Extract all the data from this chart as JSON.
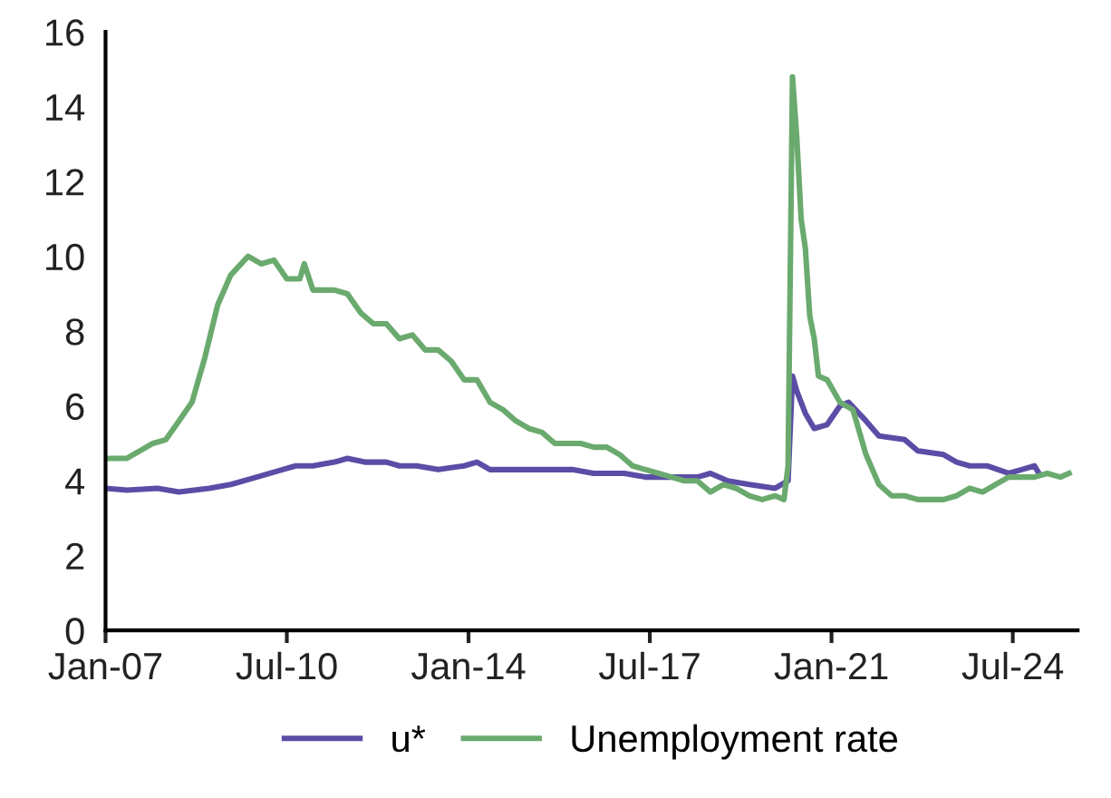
{
  "chart_data": {
    "type": "line",
    "ylim": [
      0,
      16
    ],
    "yticks": [
      0,
      2,
      4,
      6,
      8,
      10,
      12,
      14,
      16
    ],
    "xlim": [
      "2007-01",
      "2025-10"
    ],
    "xticks": [
      {
        "value": "2007-01",
        "label": "Jan-07"
      },
      {
        "value": "2010-07",
        "label": "Jul-10"
      },
      {
        "value": "2014-01",
        "label": "Jan-14"
      },
      {
        "value": "2017-07",
        "label": "Jul-17"
      },
      {
        "value": "2021-01",
        "label": "Jan-21"
      },
      {
        "value": "2024-07",
        "label": "Jul-24"
      }
    ],
    "grid": false,
    "legend": "bottom",
    "marker": "none",
    "line_style": "solid",
    "series": [
      {
        "name": "u*",
        "color": "#5b4da6",
        "x": [
          "2007-01",
          "2007-06",
          "2008-01",
          "2008-06",
          "2009-01",
          "2009-06",
          "2009-12",
          "2010-06",
          "2010-09",
          "2011-01",
          "2011-06",
          "2011-09",
          "2012-01",
          "2012-06",
          "2012-09",
          "2013-01",
          "2013-06",
          "2013-12",
          "2014-03",
          "2014-06",
          "2015-01",
          "2015-06",
          "2016-01",
          "2016-06",
          "2017-01",
          "2017-06",
          "2018-01",
          "2018-06",
          "2018-09",
          "2019-01",
          "2019-06",
          "2019-12",
          "2020-03",
          "2020-04",
          "2020-05",
          "2020-07",
          "2020-09",
          "2020-12",
          "2021-03",
          "2021-05",
          "2021-09",
          "2021-12",
          "2022-06",
          "2022-09",
          "2023-03",
          "2023-06",
          "2023-09",
          "2024-01",
          "2024-06",
          "2024-09",
          "2024-12",
          "2025-01"
        ],
        "values": [
          3.8,
          3.75,
          3.8,
          3.7,
          3.8,
          3.9,
          4.1,
          4.3,
          4.4,
          4.4,
          4.5,
          4.6,
          4.5,
          4.5,
          4.4,
          4.4,
          4.3,
          4.4,
          4.5,
          4.3,
          4.3,
          4.3,
          4.3,
          4.2,
          4.2,
          4.1,
          4.1,
          4.1,
          4.2,
          4.0,
          3.9,
          3.8,
          4.0,
          6.8,
          6.4,
          5.8,
          5.4,
          5.5,
          6.0,
          6.1,
          5.6,
          5.2,
          5.1,
          4.8,
          4.7,
          4.5,
          4.4,
          4.4,
          4.2,
          4.3,
          4.4,
          4.2
        ]
      },
      {
        "name": "Unemployment rate",
        "color": "#6aaa6e",
        "x": [
          "2007-01",
          "2007-06",
          "2007-12",
          "2008-03",
          "2008-06",
          "2008-09",
          "2008-12",
          "2009-03",
          "2009-06",
          "2009-10",
          "2010-01",
          "2010-04",
          "2010-07",
          "2010-10",
          "2010-11",
          "2011-01",
          "2011-06",
          "2011-09",
          "2011-12",
          "2012-03",
          "2012-06",
          "2012-09",
          "2012-12",
          "2013-03",
          "2013-06",
          "2013-09",
          "2013-12",
          "2014-03",
          "2014-06",
          "2014-09",
          "2014-12",
          "2015-03",
          "2015-06",
          "2015-09",
          "2015-12",
          "2016-03",
          "2016-06",
          "2016-09",
          "2016-12",
          "2017-03",
          "2017-06",
          "2017-09",
          "2017-12",
          "2018-03",
          "2018-06",
          "2018-09",
          "2018-12",
          "2019-03",
          "2019-06",
          "2019-09",
          "2019-12",
          "2020-02",
          "2020-03",
          "2020-04",
          "2020-05",
          "2020-06",
          "2020-07",
          "2020-08",
          "2020-09",
          "2020-10",
          "2020-12",
          "2021-03",
          "2021-06",
          "2021-09",
          "2021-12",
          "2022-03",
          "2022-06",
          "2022-09",
          "2022-12",
          "2023-03",
          "2023-06",
          "2023-09",
          "2023-12",
          "2024-03",
          "2024-06",
          "2024-09",
          "2024-12",
          "2025-03",
          "2025-06",
          "2025-08"
        ],
        "values": [
          4.6,
          4.6,
          5.0,
          5.1,
          5.6,
          6.1,
          7.3,
          8.7,
          9.5,
          10.0,
          9.8,
          9.9,
          9.4,
          9.4,
          9.8,
          9.1,
          9.1,
          9.0,
          8.5,
          8.2,
          8.2,
          7.8,
          7.9,
          7.5,
          7.5,
          7.2,
          6.7,
          6.7,
          6.1,
          5.9,
          5.6,
          5.4,
          5.3,
          5.0,
          5.0,
          5.0,
          4.9,
          4.9,
          4.7,
          4.4,
          4.3,
          4.2,
          4.1,
          4.0,
          4.0,
          3.7,
          3.9,
          3.8,
          3.6,
          3.5,
          3.6,
          3.5,
          4.4,
          14.8,
          13.2,
          11.0,
          10.2,
          8.4,
          7.8,
          6.8,
          6.7,
          6.1,
          5.9,
          4.7,
          3.9,
          3.6,
          3.6,
          3.5,
          3.5,
          3.5,
          3.6,
          3.8,
          3.7,
          3.9,
          4.1,
          4.1,
          4.1,
          4.2,
          4.1,
          4.2
        ]
      }
    ]
  }
}
